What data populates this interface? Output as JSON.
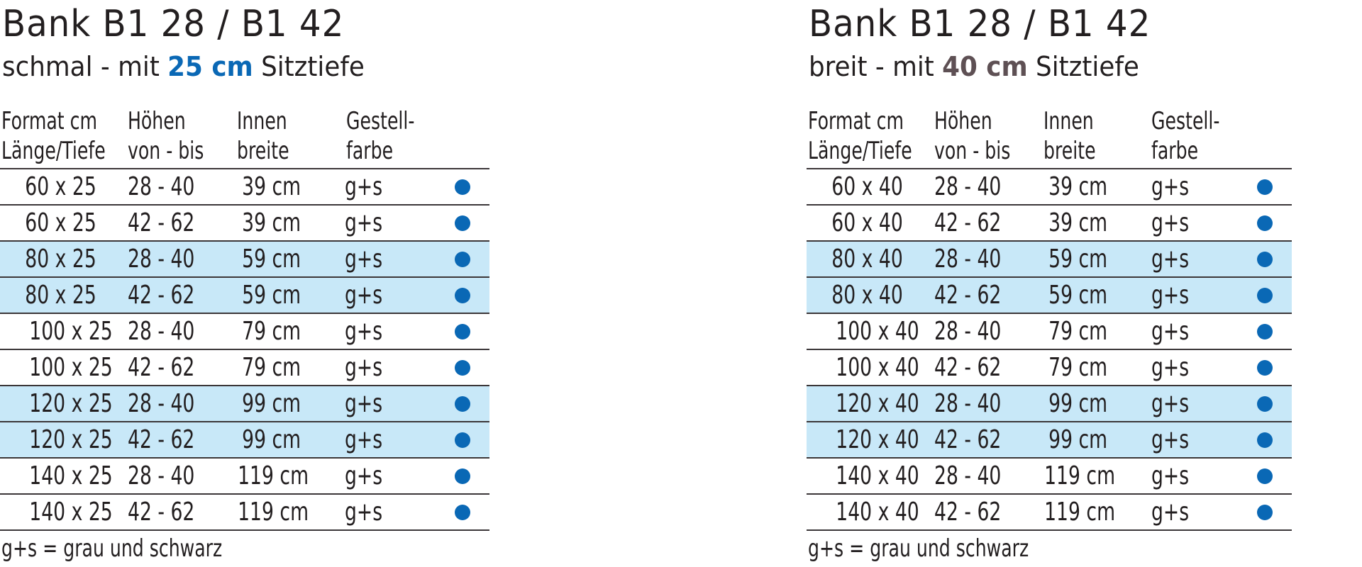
{
  "colors": {
    "text": "#231f20",
    "band": "#c8e8f8",
    "rule": "#3b3638",
    "dot": "#0a68b5",
    "accent_narrow": "#0a68b5",
    "accent_wide": "#5e5054"
  },
  "panels": [
    {
      "title": "Bank B1 28 / B1 42",
      "subtitle": {
        "prefix": "schmal - mit ",
        "highlight": "25 cm",
        "suffix": " Sitztiefe",
        "highlight_color": "#0a68b5"
      },
      "headers": [
        {
          "line1": "Format cm",
          "line2": "Länge/Tiefe"
        },
        {
          "line1": "Höhen",
          "line2": "von - bis"
        },
        {
          "line1": "Innen",
          "line2": "breite"
        },
        {
          "line1": "Gestell-",
          "line2": "farbe"
        }
      ],
      "rows": [
        {
          "format": "60 x 25",
          "height": "28 - 40",
          "inner_width": "39 cm",
          "frame_color": "g+s",
          "available": true,
          "band": false
        },
        {
          "format": "60 x 25",
          "height": "42 - 62",
          "inner_width": "39 cm",
          "frame_color": "g+s",
          "available": true,
          "band": false
        },
        {
          "format": "80 x 25",
          "height": "28 - 40",
          "inner_width": "59 cm",
          "frame_color": "g+s",
          "available": true,
          "band": true
        },
        {
          "format": "80 x 25",
          "height": "42 - 62",
          "inner_width": "59 cm",
          "frame_color": "g+s",
          "available": true,
          "band": true
        },
        {
          "format": "100 x 25",
          "height": "28 - 40",
          "inner_width": "79 cm",
          "frame_color": "g+s",
          "available": true,
          "band": false
        },
        {
          "format": "100 x 25",
          "height": "42 - 62",
          "inner_width": "79 cm",
          "frame_color": "g+s",
          "available": true,
          "band": false
        },
        {
          "format": "120 x 25",
          "height": "28 - 40",
          "inner_width": "99 cm",
          "frame_color": "g+s",
          "available": true,
          "band": true
        },
        {
          "format": "120 x 25",
          "height": "42 - 62",
          "inner_width": "99 cm",
          "frame_color": "g+s",
          "available": true,
          "band": true
        },
        {
          "format": "140 x 25",
          "height": "28 - 40",
          "inner_width": "119 cm",
          "frame_color": "g+s",
          "available": true,
          "band": false
        },
        {
          "format": "140 x 25",
          "height": "42 - 62",
          "inner_width": "119 cm",
          "frame_color": "g+s",
          "available": true,
          "band": false
        }
      ],
      "footnote": "g+s = grau und schwarz"
    },
    {
      "title": "Bank B1 28 / B1 42",
      "subtitle": {
        "prefix": "breit - mit ",
        "highlight": "40 cm",
        "suffix": " Sitztiefe",
        "highlight_color": "#5e5054"
      },
      "headers": [
        {
          "line1": "Format cm",
          "line2": "Länge/Tiefe"
        },
        {
          "line1": "Höhen",
          "line2": "von - bis"
        },
        {
          "line1": "Innen",
          "line2": "breite"
        },
        {
          "line1": "Gestell-",
          "line2": "farbe"
        }
      ],
      "rows": [
        {
          "format": "60 x 40",
          "height": "28 - 40",
          "inner_width": "39 cm",
          "frame_color": "g+s",
          "available": true,
          "band": false
        },
        {
          "format": "60 x 40",
          "height": "42 - 62",
          "inner_width": "39 cm",
          "frame_color": "g+s",
          "available": true,
          "band": false
        },
        {
          "format": "80 x 40",
          "height": "28 - 40",
          "inner_width": "59 cm",
          "frame_color": "g+s",
          "available": true,
          "band": true
        },
        {
          "format": "80 x 40",
          "height": "42 - 62",
          "inner_width": "59 cm",
          "frame_color": "g+s",
          "available": true,
          "band": true
        },
        {
          "format": "100 x 40",
          "height": "28 - 40",
          "inner_width": "79 cm",
          "frame_color": "g+s",
          "available": true,
          "band": false
        },
        {
          "format": "100 x 40",
          "height": "42 - 62",
          "inner_width": "79 cm",
          "frame_color": "g+s",
          "available": true,
          "band": false
        },
        {
          "format": "120 x 40",
          "height": "28 - 40",
          "inner_width": "99 cm",
          "frame_color": "g+s",
          "available": true,
          "band": true
        },
        {
          "format": "120 x 40",
          "height": "42 - 62",
          "inner_width": "99 cm",
          "frame_color": "g+s",
          "available": true,
          "band": true
        },
        {
          "format": "140 x 40",
          "height": "28 - 40",
          "inner_width": "119 cm",
          "frame_color": "g+s",
          "available": true,
          "band": false
        },
        {
          "format": "140 x 40",
          "height": "42 - 62",
          "inner_width": "119 cm",
          "frame_color": "g+s",
          "available": true,
          "band": false
        }
      ],
      "footnote": "g+s = grau und schwarz"
    }
  ]
}
